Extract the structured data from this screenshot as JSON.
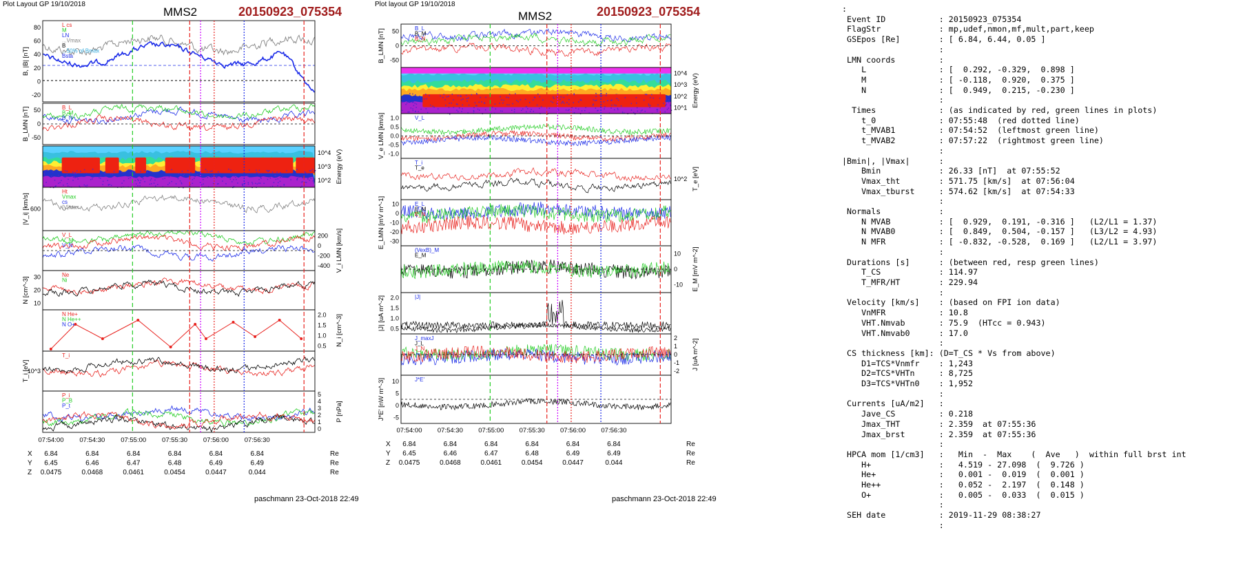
{
  "left": {
    "layout_label": "Plot Layout GP 19/10/2018",
    "spacecraft": "MMS2",
    "event": "20150923_075354",
    "footer": "paschmann 23-Oct-2018 22:49",
    "time_ticks": [
      "07:54:00",
      "07:54:30",
      "07:55:00",
      "07:55:30",
      "07:56:00",
      "07:56:30"
    ],
    "pos_rows": [
      {
        "label": "X",
        "values": [
          "6.84",
          "6.84",
          "6.84",
          "6.84",
          "6.84",
          "6.84"
        ],
        "unit": "Re"
      },
      {
        "label": "Y",
        "values": [
          "6.45",
          "6.46",
          "6.47",
          "6.48",
          "6.49",
          "6.49"
        ],
        "unit": "Re"
      },
      {
        "label": "Z",
        "values": [
          "0.0475",
          "0.0468",
          "0.0461",
          "0.0454",
          "0.0447",
          "0.044"
        ],
        "unit": "Re"
      }
    ]
  },
  "middle": {
    "layout_label": "Plot layout GP 19/10/2018",
    "spacecraft": "MMS2",
    "event": "20150923_075354",
    "footer": "paschmann 23-Oct-2018 22:49",
    "time_ticks": [
      "07:54:00",
      "07:54:30",
      "07:55:00",
      "07:55:30",
      "07:56:00",
      "07:56:30"
    ],
    "pos_rows": [
      {
        "label": "X",
        "values": [
          "6.84",
          "6.84",
          "6.84",
          "6.84",
          "6.84",
          "6.84"
        ],
        "unit": "Re"
      },
      {
        "label": "Y",
        "values": [
          "6.45",
          "6.46",
          "6.47",
          "6.48",
          "6.49",
          "6.49"
        ],
        "unit": "Re"
      },
      {
        "label": "Z",
        "values": [
          "0.0475",
          "0.0468",
          "0.0461",
          "0.0454",
          "0.0447",
          "0.044"
        ],
        "unit": "Re"
      }
    ]
  },
  "info_lines": [
    ":",
    " Event ID           : 20150923_075354",
    " FlagStr            : mp,udef,nmon,mf,mult,part,keep",
    " GSEpos [Re]        : [ 6.84, 6.44, 0.05 ]",
    "                    :",
    " LMN coords         :",
    "    L               : [  0.292, -0.329,  0.898 ]",
    "    M               : [ -0.118,  0.920,  0.375 ]",
    "    N               : [  0.949,  0.215, -0.230 ]",
    "                    :",
    "  Times             : (as indicated by red, green lines in plots)",
    "    t_0             : 07:55:48  (red dotted line)",
    "    t_MVAB1         : 07:54:52  (leftmost green line)",
    "    t_MVAB2         : 07:57:22  (rightmost green line)",
    "                    :",
    "|Bmin|, |Vmax|      :",
    "    Bmin            : 26.33 [nT]  at 07:55:52",
    "    Vmax_tht        : 571.75 [km/s]  at 07:56:04",
    "    Vmax_tburst     : 574.62 [km/s]  at 07:54:33",
    "                    :",
    " Normals            :",
    "    N MVAB          : [  0.929,  0.191, -0.316 ]   (L2/L1 = 1.37)",
    "    N MVAB0         : [  0.849,  0.504, -0.157 ]   (L3/L2 = 4.93)",
    "    N MFR           : [ -0.832, -0.528,  0.169 ]   (L2/L1 = 3.97)",
    "                    :",
    " Durations [s]      : (between red, resp green lines)",
    "    T_CS            : 114.97",
    "    T_MFR/HT        : 229.94",
    "                    :",
    " Velocity [km/s]    : (based on FPI ion data)",
    "    VnMFR           : 10.8",
    "    VHT.Nmvab       : 75.9  (HTcc = 0.943)",
    "    VHT.Nmvab0      : 17.0",
    "                    :",
    " CS thickness [km]: (D=T_CS * Vs from above)",
    "    D1=TCS*Vnmfr    : 1,243",
    "    D2=TCS*VHTn     : 8,725",
    "    D3=TCS*VHTn0    : 1,952",
    "                    :",
    " Currents [uA/m2]   :",
    "    Jave_CS         : 0.218",
    "    Jmax_THT        : 2.359  at 07:55:36",
    "    Jmax_brst       : 2.359  at 07:55:36",
    "                    :",
    " HPCA mom [1/cm3]   :   Min  -  Max    (  Ave   )  within full brst int",
    "    H+              :   4.519 - 27.098  (  9.726 )",
    "    He+             :   0.001 -  0.019  (  0.001 )",
    "    He++            :   0.052 -  2.197  (  0.148 )",
    "    O+              :   0.005 -  0.033  (  0.015 )",
    "                    :",
    " SEH date           : 2019-11-29 08:38:27",
    "                    :"
  ],
  "colors": {
    "red": "#e8221e",
    "green": "#22cc22",
    "blue": "#1a2ae8",
    "black": "#000000",
    "gray": "#808080",
    "event": "#a01c1c",
    "magenta": "#cc00ff",
    "cyan": "#33aadd"
  },
  "chart_data": [
    {
      "type": "line",
      "panel": "left-1",
      "ylabel": "B, |B| [nT]",
      "ylim": [
        -20,
        90
      ],
      "yticks": [
        "80",
        "60",
        "40",
        "20",
        "0",
        "-20"
      ],
      "legend": [
        "L cs",
        "M",
        "LN",
        "...Vmax",
        "B",
        "...50% of Bmax",
        "Bsta"
      ],
      "x": [
        "07:54:00",
        "07:54:30",
        "07:55:00",
        "07:55:30",
        "07:56:00",
        "07:56:30",
        "07:56:50"
      ],
      "series": [
        {
          "color": "blue",
          "values": [
            62,
            38,
            60,
            62,
            45,
            28,
            -20
          ]
        },
        {
          "color": "gray",
          "values": [
            72,
            55,
            65,
            70,
            60,
            50,
            40
          ]
        }
      ]
    },
    {
      "type": "line",
      "panel": "left-2",
      "ylabel": "B_LMN [nT]",
      "ylim": [
        -70,
        70
      ],
      "yticks": [
        "50",
        "0",
        "-50"
      ],
      "legend": [
        "B_L",
        "B_M",
        "B_N"
      ]
    },
    {
      "type": "heatmap",
      "panel": "left-3",
      "ylabel": "Energy (eV)",
      "yticks": [
        "10^4",
        "10^3",
        "10^2"
      ]
    },
    {
      "type": "line",
      "panel": "left-4",
      "ylabel": "|V_i| [km/s]",
      "ylim": [
        0,
        600
      ],
      "yticks": [
        "600"
      ],
      "legend": [
        "Ht",
        "Vmax",
        "cs",
        "|V|max"
      ]
    },
    {
      "type": "line",
      "panel": "left-5",
      "ylabel": "V_i LMN [km/s]",
      "ylim": [
        -500,
        300
      ],
      "yticks": [
        "200",
        "0",
        "-200",
        "-400"
      ],
      "legend": [
        "V_L",
        "V_M",
        "V_N"
      ]
    },
    {
      "type": "line",
      "panel": "left-6",
      "ylabel": "N [cm^-3]",
      "ylim": [
        0,
        35
      ],
      "yticks": [
        "30",
        "20",
        "10"
      ],
      "legend": [
        "Ne",
        "Ni"
      ]
    },
    {
      "type": "line",
      "panel": "left-7",
      "ylabel": "N_i [cm^-3]",
      "ylim": [
        0,
        2.2
      ],
      "yticks": [
        "2.0",
        "1.5",
        "1.0",
        "0.5"
      ],
      "legend": [
        "N He+",
        "N He++",
        "N O+"
      ]
    },
    {
      "type": "line",
      "panel": "left-8",
      "ylabel": "T_i [eV]",
      "yticks": [
        "10^3"
      ],
      "legend": [
        "T_i"
      ]
    },
    {
      "type": "line",
      "panel": "left-9",
      "ylabel": "P [nPa]",
      "ylim": [
        0,
        5
      ],
      "yticks": [
        "5",
        "4",
        "3",
        "2",
        "1",
        "0"
      ],
      "legend": [
        "P_i",
        "P_B",
        "P_t"
      ]
    },
    {
      "type": "line",
      "panel": "mid-1",
      "ylabel": "B_LMN [nT]",
      "ylim": [
        -70,
        70
      ],
      "yticks": [
        "50",
        "0",
        "-50"
      ],
      "legend": [
        "B_L",
        "B_M",
        "B_N"
      ]
    },
    {
      "type": "heatmap",
      "panel": "mid-2",
      "ylabel": "Energy (eV)",
      "yticks": [
        "10^4",
        "10^3",
        "10^2",
        "10^1"
      ]
    },
    {
      "type": "line",
      "panel": "mid-3",
      "ylabel": "V_e LMN [km/s]",
      "yticks": [
        "1.0",
        "0.5",
        "0.0",
        "-0.5",
        "-1.0"
      ],
      "legend": [
        "V_L"
      ]
    },
    {
      "type": "line",
      "panel": "mid-4",
      "ylabel": "T_e [eV]",
      "yticks": [
        "10^2"
      ],
      "legend": [
        "T_i",
        "T_e"
      ]
    },
    {
      "type": "line",
      "panel": "mid-5",
      "ylabel": "E_LMN [mV m^-1]",
      "yticks": [
        "10",
        "0",
        "-10",
        "-20",
        "-30"
      ],
      "legend": [
        "E_L",
        "E_M",
        "E_N"
      ]
    },
    {
      "type": "line",
      "panel": "mid-6",
      "ylabel": "E_M [mV m^-2]",
      "yticks": [
        "10",
        "0",
        "-10"
      ],
      "legend": [
        "(VexB)_M",
        "E_M"
      ]
    },
    {
      "type": "line",
      "panel": "mid-7",
      "ylabel": "|J| [uA m^-2]",
      "ylim": [
        0,
        2.2
      ],
      "yticks": [
        "2.0",
        "1.5",
        "1.0",
        "0.5"
      ],
      "legend": [
        "|J|"
      ]
    },
    {
      "type": "line",
      "panel": "mid-8",
      "ylabel": "J [uA m^-2]",
      "yticks": [
        "2",
        "1",
        "0",
        "-1",
        "-2"
      ],
      "legend": [
        "J_maxJ",
        "J_L",
        "J_N"
      ]
    },
    {
      "type": "line",
      "panel": "mid-9",
      "ylabel": "J*E' [nW m^-3]",
      "yticks": [
        "10",
        "5",
        "0",
        "-5"
      ],
      "legend": [
        "J*E'"
      ]
    }
  ]
}
